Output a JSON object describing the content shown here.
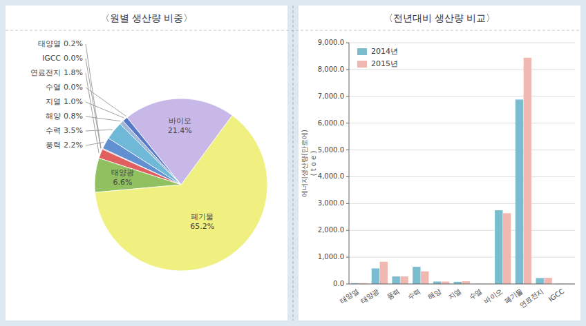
{
  "chart_data": [
    {
      "type": "pie",
      "title": "〈원별 생산량 비중〉",
      "categories": [
        "태양열",
        "IGCC",
        "연료전지",
        "태양광",
        "폐기물",
        "바이오",
        "수열",
        "지열",
        "해양",
        "수력",
        "풍력"
      ],
      "values": [
        0.2,
        0.0,
        1.8,
        6.6,
        65.2,
        21.4,
        0.0,
        1.0,
        0.8,
        3.5,
        2.2
      ],
      "value_labels": [
        "0.2%",
        "0.0%",
        "1.8%",
        "6.6%",
        "65.2%",
        "21.4%",
        "0.0%",
        "1.0%",
        "0.8%",
        "3.5%",
        "2.2%"
      ],
      "colors": [
        "#e06060",
        "#c0c0c0",
        "#e06060",
        "#90c060",
        "#f0f080",
        "#c8b8e8",
        "#a0d8e8",
        "#5878c8",
        "#a0b8d8",
        "#70b8d8",
        "#6090d0"
      ]
    },
    {
      "type": "bar",
      "title": "〈전년대비 생산량 비교〉",
      "categories": [
        "태양열",
        "태양광",
        "풍력",
        "수력",
        "해양",
        "지열",
        "수열",
        "바이오",
        "폐기물",
        "연료전지",
        "IGCC"
      ],
      "series": [
        {
          "name": "2014년",
          "color": "#7bbcce",
          "values": [
            30,
            580,
            280,
            640,
            90,
            80,
            5,
            2750,
            6880,
            220,
            10
          ]
        },
        {
          "name": "2015년",
          "color": "#f0b8b0",
          "values": [
            30,
            830,
            280,
            470,
            90,
            100,
            5,
            2640,
            8440,
            230,
            10
          ]
        }
      ],
      "y_label": "에너지생산량(만로에)\n( t o e )",
      "ylim": [
        0,
        9000
      ],
      "yticks": [
        {
          "value": 0,
          "label": "0.0"
        },
        {
          "value": 1000,
          "label": "1,000.0"
        },
        {
          "value": 2000,
          "label": "2,000.0"
        },
        {
          "value": 3000,
          "label": "3,000.0"
        },
        {
          "value": 4000,
          "label": "4,000.0"
        },
        {
          "value": 5000,
          "label": "5,000.0"
        },
        {
          "value": 6000,
          "label": "6,000.0"
        },
        {
          "value": 7000,
          "label": "7,000.0"
        },
        {
          "value": 8000,
          "label": "8,000.0"
        },
        {
          "value": 9000,
          "label": "9,000.0"
        }
      ],
      "grid": true,
      "legend": "upper left"
    }
  ]
}
